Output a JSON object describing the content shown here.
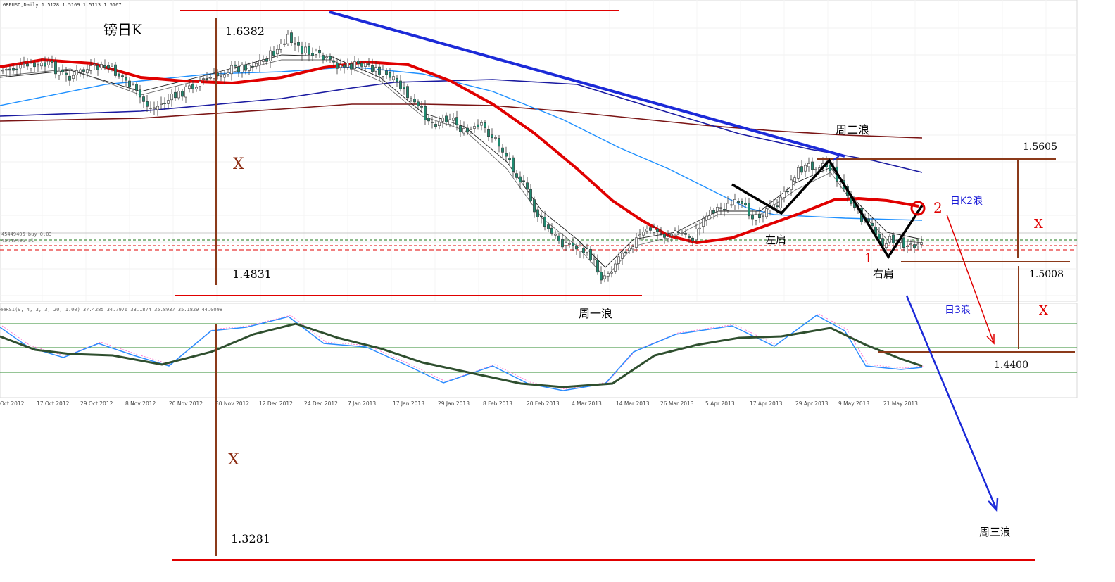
{
  "chart_data": {
    "type": "candlestick",
    "symbol_header": "GBPUSD,Daily  1.5128 1.5169 1.5113 1.5167",
    "title_label": "镑日K",
    "indicator_header": "eeRSI(9, 4, 3, 3, 20, 1.00) 37.4285 34.7976 33.1874 35.8937 35.1829 44.0098",
    "overlay_text_1": "45449406 buy 0.03",
    "overlay_text_2": "45449406 sl",
    "x_tick_labels": [
      "Oct 2012",
      "17 Oct 2012",
      "29 Oct 2012",
      "8 Nov 2012",
      "20 Nov 2012",
      "30 Nov 2012",
      "12 Dec 2012",
      "24 Dec 2012",
      "7 Jan 2013",
      "17 Jan 2013",
      "29 Jan 2013",
      "8 Feb 2013",
      "20 Feb 2013",
      "4 Mar 2013",
      "14 Mar 2013",
      "26 Mar 2013",
      "5 Apr 2013",
      "17 Apr 2013",
      "29 Apr 2013",
      "9 May 2013",
      "21 May 2013"
    ],
    "price_levels": [
      "1.6382",
      "1.4831",
      "1.5605",
      "1.5008",
      "1.4400",
      "1.3281"
    ],
    "wave_labels": {
      "week1": "周一浪",
      "week2": "周二浪",
      "week3": "周三浪",
      "daily2": "日K2浪",
      "daily3": "日3浪",
      "left_shoulder": "左肩",
      "right_shoulder": "右肩",
      "mark_1": "1",
      "mark_2": "2",
      "x_mark": "X"
    },
    "colors": {
      "ma_red": "#e00000",
      "ma_lightblue": "#1e90ff",
      "ma_navy": "#1a1aa0",
      "ma_brown": "#7a1414",
      "trend_blue": "#1c2ad8",
      "bull_candle": "#ffffff",
      "bear_candle": "#1f8a70",
      "level_red": "#e00000",
      "level_brown": "#8b3a1a",
      "rsi_fast": "#2b8cff",
      "rsi_slow": "#2f4f2f",
      "rsi_pink": "#ff66cc",
      "grid_green": "#2e8b2e"
    }
  }
}
